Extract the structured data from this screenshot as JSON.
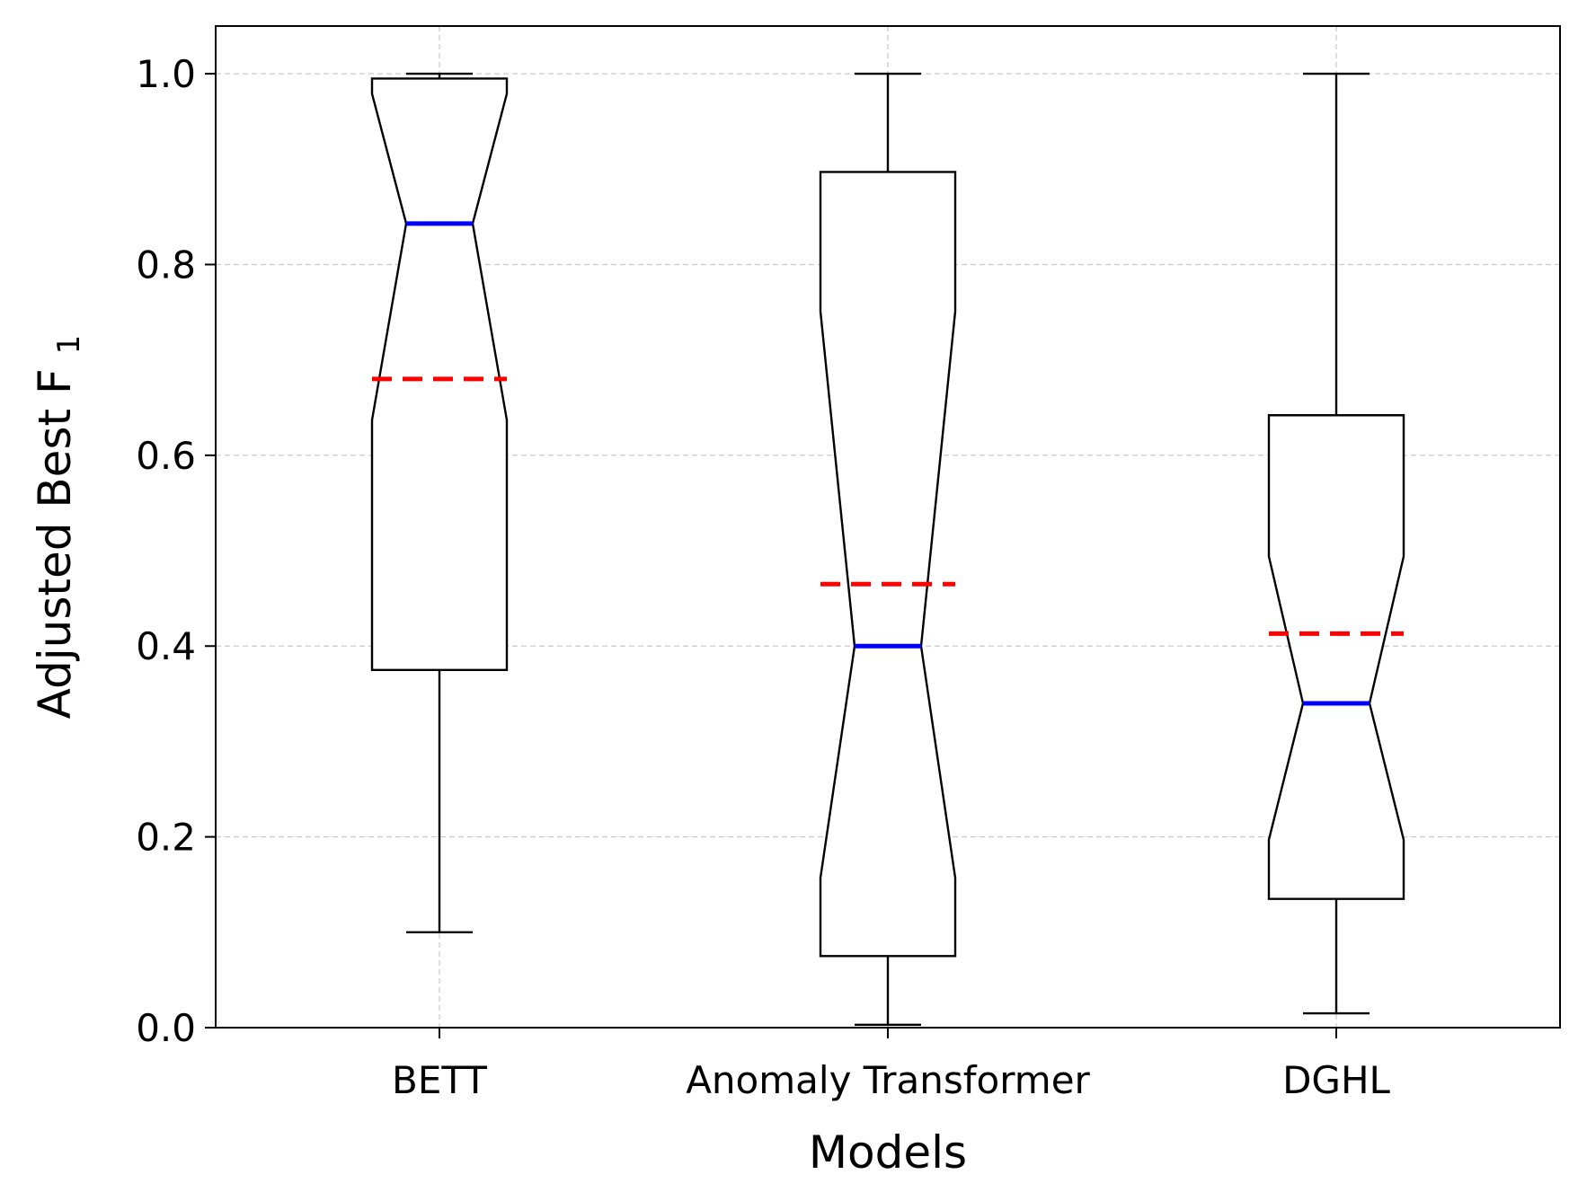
{
  "chart_data": {
    "type": "boxplot",
    "title": "",
    "xlabel": "Models",
    "ylabel": "Adjusted Best F",
    "ylabel_subscript": "1",
    "ylim": [
      0,
      1.05
    ],
    "yticks": [
      "0.0",
      "0.2",
      "0.4",
      "0.6",
      "0.8",
      "1.0"
    ],
    "grid": true,
    "notched": true,
    "median_color": "#0000ff",
    "mean_color": "#ff0000",
    "categories": [
      "BETT",
      "Anomaly Transformer",
      "DGHL"
    ],
    "boxes": [
      {
        "label": "BETT",
        "whisker_low": 0.1,
        "q1": 0.375,
        "median": 0.843,
        "q3": 0.995,
        "whisker_high": 1.0,
        "notch_low": 0.637,
        "notch_high": 0.979,
        "mean": 0.68
      },
      {
        "label": "Anomaly Transformer",
        "whisker_low": 0.003,
        "q1": 0.075,
        "median": 0.4,
        "q3": 0.897,
        "whisker_high": 1.0,
        "notch_low": 0.157,
        "notch_high": 0.751,
        "mean": 0.465
      },
      {
        "label": "DGHL",
        "whisker_low": 0.015,
        "q1": 0.135,
        "median": 0.34,
        "q3": 0.642,
        "whisker_high": 1.0,
        "notch_low": 0.197,
        "notch_high": 0.494,
        "mean": 0.413
      }
    ]
  }
}
